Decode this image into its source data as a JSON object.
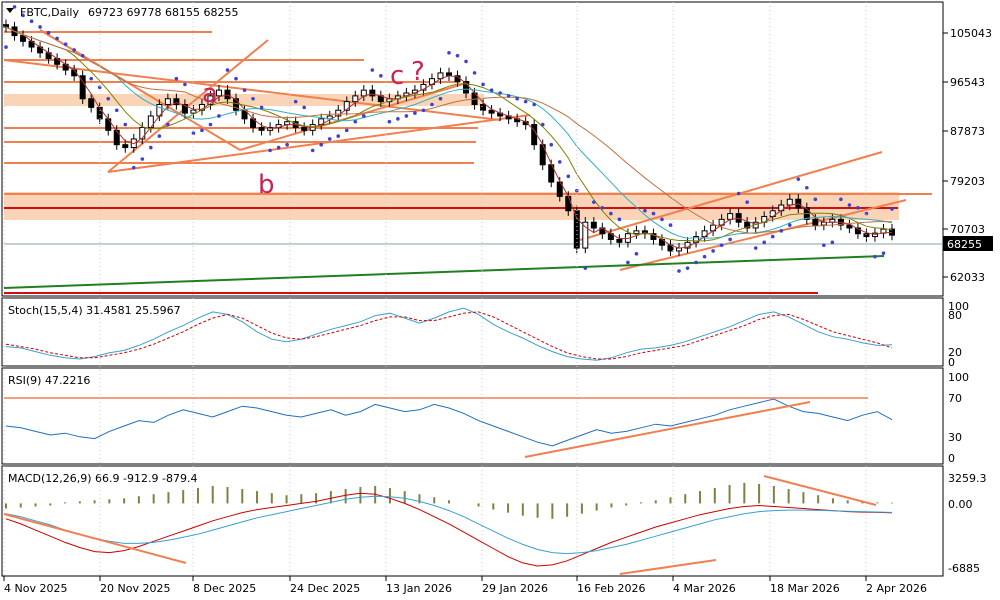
{
  "chart_data": [
    {
      "panel": "price",
      "type": "candlestick",
      "title": "FBTC,Daily",
      "ohlc_header": "69723 69778 68155 68255",
      "last_price": "68255",
      "ylim": [
        58000,
        108500
      ],
      "y_ticks": [
        "105043",
        "96543",
        "87873",
        "79203",
        "70703",
        "62033"
      ],
      "x_ticks": [
        "4 Nov 2025",
        "20 Nov 2025",
        "8 Dec 2025",
        "24 Dec 2025",
        "13 Jan 2026",
        "29 Jan 2026",
        "16 Feb 2026",
        "4 Mar 2026",
        "18 Mar 2026",
        "2 Apr 2026"
      ],
      "wave_labels": [
        "a",
        "b",
        "c",
        "?"
      ],
      "close_approx": [
        104500,
        103000,
        102000,
        101000,
        100000,
        99000,
        98000,
        97000,
        96000,
        92000,
        90500,
        88500,
        86500,
        84000,
        83500,
        85000,
        87000,
        89000,
        91000,
        92000,
        91000,
        89500,
        90000,
        91000,
        92500,
        93500,
        92000,
        90000,
        88500,
        87000,
        86500,
        87000,
        87500,
        88000,
        87000,
        86500,
        87500,
        88500,
        89000,
        90000,
        91500,
        92500,
        93500,
        92500,
        91500,
        92000,
        92500,
        93000,
        93500,
        94500,
        95500,
        96500,
        96000,
        95000,
        93000,
        91000,
        90000,
        89500,
        89000,
        88500,
        88000,
        87500,
        84000,
        80500,
        77500,
        75000,
        72500,
        66000,
        70500,
        69500,
        68500,
        67500,
        67000,
        68500,
        69000,
        68500,
        67500,
        66500,
        65500,
        66000,
        67000,
        68000,
        69000,
        70000,
        71000,
        72000,
        70500,
        69500,
        70500,
        71500,
        72500,
        73500,
        74500,
        73000,
        71000,
        70000,
        70500,
        71000,
        70000,
        69500,
        68500,
        68000,
        68600,
        69300,
        68255
      ]
    },
    {
      "panel": "stochastic",
      "type": "line",
      "title": "Stoch(15,5,4) 31.4581 25.5967",
      "ylim": [
        0,
        100
      ],
      "y_ticks": [
        "100",
        "80",
        "20",
        "0"
      ],
      "series": [
        {
          "name": "",
          "color": "#3aa0d0",
          "values": [
            28,
            26,
            20,
            14,
            10,
            8,
            12,
            18,
            22,
            30,
            40,
            52,
            62,
            74,
            84,
            80,
            68,
            52,
            40,
            36,
            40,
            48,
            56,
            62,
            68,
            78,
            82,
            74,
            66,
            74,
            84,
            90,
            80,
            64,
            52,
            42,
            30,
            20,
            12,
            8,
            6,
            10,
            18,
            24,
            26,
            30,
            36,
            44,
            52,
            60,
            70,
            80,
            84,
            76,
            64,
            52,
            44,
            40,
            34,
            30,
            31
          ]
        },
        {
          "name": "",
          "color": "#cc0000",
          "values": [
            32,
            28,
            24,
            18,
            14,
            10,
            10,
            14,
            18,
            24,
            32,
            42,
            52,
            64,
            74,
            80,
            74,
            62,
            50,
            42,
            40,
            44,
            50,
            56,
            62,
            70,
            76,
            76,
            70,
            70,
            76,
            82,
            84,
            76,
            64,
            52,
            40,
            28,
            18,
            12,
            8,
            8,
            12,
            18,
            22,
            26,
            30,
            38,
            46,
            54,
            62,
            72,
            78,
            80,
            72,
            62,
            52,
            46,
            40,
            34,
            26
          ]
        }
      ]
    },
    {
      "panel": "rsi",
      "type": "line",
      "title": "RSI(9) 47.2216",
      "ylim": [
        0,
        100
      ],
      "y_ticks": [
        "100",
        "70",
        "30",
        "0"
      ],
      "series": [
        {
          "name": "",
          "color": "#1e6fc0",
          "values": [
            40,
            38,
            34,
            30,
            32,
            28,
            26,
            34,
            40,
            46,
            44,
            52,
            58,
            54,
            50,
            56,
            62,
            60,
            56,
            52,
            50,
            54,
            58,
            52,
            56,
            64,
            60,
            56,
            58,
            64,
            60,
            54,
            46,
            40,
            34,
            28,
            22,
            18,
            24,
            30,
            36,
            32,
            34,
            38,
            42,
            40,
            44,
            48,
            52,
            58,
            62,
            66,
            70,
            62,
            56,
            54,
            50,
            46,
            52,
            56,
            47
          ]
        }
      ]
    },
    {
      "panel": "macd",
      "type": "bar+line",
      "title": "MACD(12,26,9) 66.9 -912.9 -879.4",
      "ylim": [
        -6885,
        3259.3
      ],
      "y_ticks": [
        "3259.3",
        "0.00",
        "-6885"
      ],
      "histogram": [
        -500,
        -400,
        -300,
        -200,
        100,
        200,
        300,
        400,
        500,
        700,
        900,
        1100,
        1300,
        1500,
        1700,
        1600,
        1400,
        1200,
        1000,
        800,
        900,
        1000,
        1200,
        1400,
        1600,
        1700,
        1500,
        1200,
        900,
        600,
        300,
        0,
        -300,
        -600,
        -900,
        -1200,
        -1400,
        -1500,
        -1300,
        -1000,
        -700,
        -400,
        -200,
        100,
        300,
        600,
        900,
        1200,
        1500,
        1800,
        2000,
        1900,
        1700,
        1400,
        1100,
        800,
        500,
        300,
        200,
        100,
        67
      ],
      "series": [
        {
          "name": "",
          "color": "#cc0000",
          "values": [
            -1500,
            -2000,
            -2600,
            -3200,
            -3800,
            -4300,
            -4700,
            -4800,
            -4600,
            -4200,
            -3700,
            -3200,
            -2700,
            -2200,
            -1700,
            -1300,
            -900,
            -600,
            -400,
            -200,
            0,
            200,
            500,
            800,
            1000,
            900,
            500,
            0,
            -600,
            -1300,
            -2000,
            -2800,
            -3600,
            -4400,
            -5200,
            -5800,
            -6100,
            -6000,
            -5600,
            -5000,
            -4400,
            -3800,
            -3300,
            -2800,
            -2300,
            -1900,
            -1500,
            -1100,
            -800,
            -500,
            -300,
            -200,
            -300,
            -400,
            -500,
            -600,
            -700,
            -800,
            -850,
            -880,
            -913
          ]
        },
        {
          "name": "",
          "color": "#3aa0d0",
          "values": [
            -1000,
            -1300,
            -1700,
            -2100,
            -2600,
            -3000,
            -3400,
            -3700,
            -3900,
            -3900,
            -3800,
            -3600,
            -3300,
            -3000,
            -2600,
            -2200,
            -1800,
            -1400,
            -1100,
            -800,
            -500,
            -200,
            100,
            400,
            600,
            700,
            650,
            500,
            200,
            -200,
            -700,
            -1300,
            -2000,
            -2700,
            -3400,
            -4000,
            -4500,
            -4800,
            -4900,
            -4800,
            -4600,
            -4300,
            -4000,
            -3600,
            -3200,
            -2800,
            -2400,
            -2000,
            -1600,
            -1300,
            -1000,
            -800,
            -700,
            -650,
            -650,
            -680,
            -720,
            -760,
            -800,
            -840,
            -879
          ]
        }
      ]
    }
  ]
}
